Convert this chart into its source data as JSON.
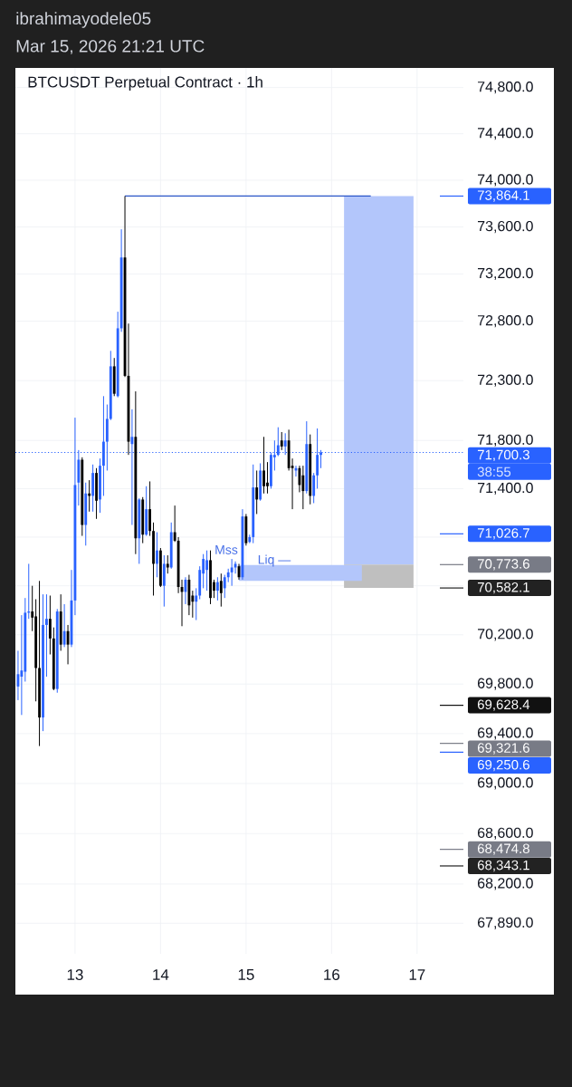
{
  "chart_data": {
    "type": "candlestick",
    "title": "BTCUSDT Perpetual Contract · 1h",
    "annotations": [
      "ibrahimayodele05",
      "Mar 15, 2026 21:21 UTC",
      "38:55",
      "Mss",
      "Liq —"
    ],
    "x": [
      "2026-03-12T08:00",
      "2026-03-12T09:00",
      "2026-03-12T10:00",
      "2026-03-12T11:00",
      "2026-03-12T12:00",
      "2026-03-12T13:00",
      "2026-03-12T14:00",
      "2026-03-12T15:00",
      "2026-03-12T16:00",
      "2026-03-12T17:00",
      "2026-03-12T18:00",
      "2026-03-12T19:00",
      "2026-03-12T20:00",
      "2026-03-12T21:00",
      "2026-03-12T22:00",
      "2026-03-12T23:00",
      "2026-03-13T00:00",
      "2026-03-13T01:00",
      "2026-03-13T02:00",
      "2026-03-13T03:00",
      "2026-03-13T04:00",
      "2026-03-13T05:00",
      "2026-03-13T06:00",
      "2026-03-13T07:00",
      "2026-03-13T08:00",
      "2026-03-13T09:00",
      "2026-03-13T10:00",
      "2026-03-13T11:00",
      "2026-03-13T12:00",
      "2026-03-13T13:00",
      "2026-03-13T14:00",
      "2026-03-13T15:00",
      "2026-03-13T16:00",
      "2026-03-13T17:00",
      "2026-03-13T18:00",
      "2026-03-13T19:00",
      "2026-03-13T20:00",
      "2026-03-13T21:00",
      "2026-03-13T22:00",
      "2026-03-13T23:00",
      "2026-03-14T00:00",
      "2026-03-14T01:00",
      "2026-03-14T02:00",
      "2026-03-14T03:00",
      "2026-03-14T04:00",
      "2026-03-14T05:00",
      "2026-03-14T06:00",
      "2026-03-14T07:00",
      "2026-03-14T08:00",
      "2026-03-14T09:00",
      "2026-03-14T10:00",
      "2026-03-14T11:00",
      "2026-03-14T12:00",
      "2026-03-14T13:00",
      "2026-03-14T14:00",
      "2026-03-14T15:00",
      "2026-03-14T16:00",
      "2026-03-14T17:00",
      "2026-03-14T18:00",
      "2026-03-14T19:00",
      "2026-03-14T20:00",
      "2026-03-14T21:00",
      "2026-03-14T22:00",
      "2026-03-14T23:00",
      "2026-03-15T00:00",
      "2026-03-15T01:00",
      "2026-03-15T02:00",
      "2026-03-15T03:00",
      "2026-03-15T04:00",
      "2026-03-15T05:00",
      "2026-03-15T06:00",
      "2026-03-15T07:00",
      "2026-03-15T08:00",
      "2026-03-15T09:00",
      "2026-03-15T10:00",
      "2026-03-15T11:00",
      "2026-03-15T12:00",
      "2026-03-15T13:00",
      "2026-03-15T14:00",
      "2026-03-15T15:00",
      "2026-03-15T16:00",
      "2026-03-15T17:00",
      "2026-03-15T18:00",
      "2026-03-15T19:00",
      "2026-03-15T20:00",
      "2026-03-15T21:00"
    ],
    "ohlc": [
      [
        69780,
        70070,
        69670,
        69880
      ],
      [
        69860,
        70360,
        69550,
        69910
      ],
      [
        69900,
        70500,
        69820,
        70380
      ],
      [
        70380,
        70780,
        70330,
        70390
      ],
      [
        70390,
        70600,
        70230,
        70340
      ],
      [
        70350,
        70490,
        69660,
        69930
      ],
      [
        69930,
        70640,
        69300,
        69530
      ],
      [
        69530,
        70530,
        69420,
        70280
      ],
      [
        70280,
        70530,
        69860,
        70330
      ],
      [
        70330,
        70520,
        70040,
        70170
      ],
      [
        70170,
        70260,
        69750,
        69760
      ],
      [
        69760,
        70410,
        69730,
        70390
      ],
      [
        70390,
        70530,
        70070,
        70120
      ],
      [
        70120,
        70450,
        70100,
        70230
      ],
      [
        70230,
        70280,
        69960,
        70120
      ],
      [
        70120,
        70730,
        70100,
        70480
      ],
      [
        70480,
        71990,
        70360,
        71430
      ],
      [
        71450,
        71720,
        71260,
        71640
      ],
      [
        71640,
        71660,
        71010,
        71100
      ],
      [
        71100,
        71450,
        70930,
        71360
      ],
      [
        71360,
        71470,
        71210,
        71340
      ],
      [
        71340,
        71600,
        71210,
        71530
      ],
      [
        71530,
        71570,
        71150,
        71300
      ],
      [
        71310,
        71650,
        71200,
        71590
      ],
      [
        71590,
        72170,
        71340,
        71790
      ],
      [
        71790,
        72100,
        71550,
        71980
      ],
      [
        71980,
        72550,
        71970,
        72420
      ],
      [
        72420,
        72490,
        72170,
        72190
      ],
      [
        72170,
        72880,
        72160,
        72740
      ],
      [
        72740,
        73580,
        72710,
        73340
      ],
      [
        73340,
        73864.1,
        72330,
        72340
      ],
      [
        72340,
        72780,
        71680,
        71790
      ],
      [
        71770,
        72060,
        71100,
        71830
      ],
      [
        71830,
        72210,
        70860,
        70990
      ],
      [
        70990,
        71320,
        70780,
        71310
      ],
      [
        71310,
        71330,
        70950,
        71020
      ],
      [
        71020,
        71420,
        71010,
        71230
      ],
      [
        71230,
        71460,
        71010,
        71050
      ],
      [
        71050,
        71120,
        70520,
        70780
      ],
      [
        70780,
        71040,
        70670,
        70890
      ],
      [
        70890,
        70910,
        70590,
        70600
      ],
      [
        70600,
        70850,
        70430,
        70780
      ],
      [
        70780,
        70850,
        70700,
        70750
      ],
      [
        70750,
        71120,
        70740,
        71040
      ],
      [
        71040,
        71260,
        70960,
        70970
      ],
      [
        70970,
        71000,
        70540,
        70590
      ],
      [
        70590,
        70650,
        70270,
        70550
      ],
      [
        70550,
        70670,
        70450,
        70650
      ],
      [
        70650,
        70690,
        70360,
        70440
      ],
      [
        70520,
        70560,
        70340,
        70470
      ],
      [
        70470,
        70580,
        70320,
        70520
      ],
      [
        70520,
        70760,
        70490,
        70730
      ],
      [
        70700,
        70860,
        70580,
        70820
      ],
      [
        70730,
        70890,
        70560,
        70810
      ],
      [
        70810,
        70890,
        70450,
        70500
      ],
      [
        70630,
        70650,
        70500,
        70560
      ],
      [
        70560,
        70670,
        70480,
        70630
      ],
      [
        70640,
        70700,
        70430,
        70540
      ],
      [
        70580,
        70690,
        70500,
        70670
      ],
      [
        70670,
        70740,
        70630,
        70710
      ],
      [
        70710,
        70820,
        70600,
        70750
      ],
      [
        70750,
        70800,
        70700,
        70780
      ],
      [
        70760,
        70780,
        70650,
        70670
      ],
      [
        70670,
        71230,
        70650,
        71170
      ],
      [
        71170,
        71190,
        70930,
        70950
      ],
      [
        70960,
        71020,
        70950,
        71000
      ],
      [
        71000,
        71600,
        70950,
        71410
      ],
      [
        71410,
        71550,
        71190,
        71310
      ],
      [
        71310,
        71610,
        71300,
        71550
      ],
      [
        71550,
        71830,
        71360,
        71420
      ],
      [
        71450,
        71620,
        71360,
        71420
      ],
      [
        71420,
        71700,
        71400,
        71680
      ],
      [
        71660,
        71800,
        71550,
        71680
      ],
      [
        71680,
        71910,
        71670,
        71760
      ],
      [
        71800,
        71870,
        71720,
        71750
      ],
      [
        71750,
        71860,
        71680,
        71800
      ],
      [
        71800,
        71890,
        71550,
        71570
      ],
      [
        71590,
        71650,
        71230,
        71570
      ],
      [
        71550,
        71590,
        71500,
        71570
      ],
      [
        71570,
        71590,
        71370,
        71430
      ],
      [
        71510,
        71590,
        71230,
        71380
      ],
      [
        71380,
        71960,
        71360,
        71770
      ],
      [
        71770,
        71850,
        71270,
        71340
      ],
      [
        71340,
        71530,
        71280,
        71510
      ],
      [
        71510,
        71900,
        71400,
        71680
      ],
      [
        71680,
        71720,
        71570,
        71700.3
      ]
    ],
    "colors": [
      "#2962ff",
      "#2962ff",
      "#2962ff",
      "#2962ff",
      "#000000",
      "#000000",
      "#000000",
      "#2962ff",
      "#2962ff",
      "#000000",
      "#000000",
      "#2962ff",
      "#000000",
      "#2962ff",
      "#000000",
      "#2962ff",
      "#2962ff",
      "#2962ff",
      "#000000",
      "#2962ff",
      "#000000",
      "#2962ff",
      "#000000",
      "#2962ff",
      "#2962ff",
      "#2962ff",
      "#2962ff",
      "#000000",
      "#2962ff",
      "#2962ff",
      "#000000",
      "#000000",
      "#2962ff",
      "#000000",
      "#2962ff",
      "#000000",
      "#2962ff",
      "#000000",
      "#000000",
      "#2962ff",
      "#000000",
      "#2962ff",
      "#000000",
      "#2962ff",
      "#000000",
      "#000000",
      "#000000",
      "#2962ff",
      "#000000",
      "#000000",
      "#2962ff",
      "#2962ff",
      "#2962ff",
      "#2962ff",
      "#000000",
      "#000000",
      "#2962ff",
      "#000000",
      "#2962ff",
      "#2962ff",
      "#2962ff",
      "#2962ff",
      "#000000",
      "#2962ff",
      "#000000",
      "#2962ff",
      "#2962ff",
      "#000000",
      "#2962ff",
      "#000000",
      "#000000",
      "#2962ff",
      "#2962ff",
      "#2962ff",
      "#000000",
      "#2962ff",
      "#000000",
      "#000000",
      "#2962ff",
      "#000000",
      "#000000",
      "#2962ff",
      "#000000",
      "#2962ff",
      "#2962ff",
      "#2962ff"
    ],
    "series": [
      {
        "type": "line",
        "x": [
          "2026-03-16T03:30",
          "2026-03-16T23:00"
        ],
        "values": [
          null,
          null
        ],
        "lower": [
          70773.6,
          70773.6
        ],
        "upper": [
          73864.1,
          73864.1
        ],
        "color": "#b3c6fb"
      },
      {
        "type": "line",
        "x": [
          "2026-03-16T03:30",
          "2026-03-16T23:00"
        ],
        "values": [
          null,
          null
        ],
        "lower": [
          70582.1,
          70582.1
        ],
        "upper": [
          70773.6,
          70773.6
        ],
        "color": "#bfbfbf"
      },
      {
        "type": "line",
        "x": [
          "2026-03-14T22:00",
          "2026-03-16T08:30"
        ],
        "values": [
          null,
          null
        ],
        "lower": [
          70640,
          70640
        ],
        "upper": [
          70770,
          70770
        ],
        "color": "#b3c6fb"
      },
      {
        "type": "line",
        "x": [
          "2026-03-13T14:00",
          "2026-03-16T11:00"
        ],
        "values": [
          73864.1,
          73864.1
        ],
        "color": "#2a55c8"
      }
    ],
    "xlim": [
      "2026-03-12T07:15",
      "2026-03-17T13:00"
    ],
    "xticks": [
      {
        "value": "2026-03-13",
        "label": "13"
      },
      {
        "value": "2026-03-14",
        "label": "14"
      },
      {
        "value": "2026-03-15",
        "label": "15"
      },
      {
        "value": "2026-03-16",
        "label": "16"
      },
      {
        "value": "2026-03-17",
        "label": "17"
      }
    ],
    "ylim": [
      67650,
      74970
    ],
    "yticks": [
      {
        "value": 74800,
        "label": "74,800.0"
      },
      {
        "value": 74400,
        "label": "74,400.0"
      },
      {
        "value": 74000,
        "label": "74,000.0"
      },
      {
        "value": 73600,
        "label": "73,600.0"
      },
      {
        "value": 73200,
        "label": "73,200.0"
      },
      {
        "value": 72800,
        "label": "72,800.0"
      },
      {
        "value": 72300,
        "label": "72,300.0"
      },
      {
        "value": 71800,
        "label": "71,800.0"
      },
      {
        "value": 71400,
        "label": "71,400.0"
      },
      {
        "value": 71000,
        "label": null
      },
      {
        "value": 70600,
        "label": null
      },
      {
        "value": 70200,
        "label": "70,200.0"
      },
      {
        "value": 69800,
        "label": "69,800.0"
      },
      {
        "value": 69400,
        "label": "69,400.0"
      },
      {
        "value": 69000,
        "label": "69,000.0"
      },
      {
        "value": 68600,
        "label": "68,600.0"
      },
      {
        "value": 68200,
        "label": "68,200.0"
      },
      {
        "value": 67890,
        "label": "67,890.0"
      }
    ],
    "log": "y",
    "grid": true,
    "ref_lines": [
      {
        "axis": "y",
        "value": 73864.1,
        "label": "73,864.1",
        "color": "#2962ff"
      },
      {
        "axis": "y",
        "value": 71700.3,
        "label": "71,700.3",
        "color": "#2962ff",
        "line_style": "dotted"
      },
      {
        "axis": "y",
        "value": 71026.7,
        "label": "71,026.7",
        "color": "#2962ff"
      },
      {
        "axis": "y",
        "value": 70773.6,
        "label": "70,773.6",
        "color": "#787b86"
      },
      {
        "axis": "y",
        "value": 70582.1,
        "label": "70,582.1",
        "color": "#222222"
      },
      {
        "axis": "y",
        "value": 69628.4,
        "label": "69,628.4",
        "color": "#111111"
      },
      {
        "axis": "y",
        "value": 69321.6,
        "label": "69,321.6",
        "color": "#787b86"
      },
      {
        "axis": "y",
        "value": 69250.6,
        "label": "69,250.6",
        "color": "#2962ff"
      },
      {
        "axis": "y",
        "value": 68474.8,
        "label": "68,474.8",
        "color": "#787b86"
      },
      {
        "axis": "y",
        "value": 68343.1,
        "label": "68,343.1",
        "color": "#222222"
      }
    ]
  }
}
